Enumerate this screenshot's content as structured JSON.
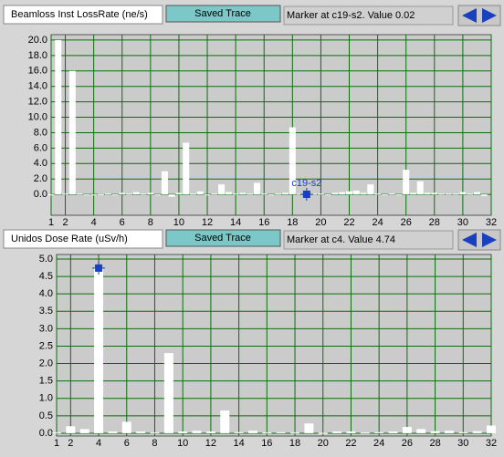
{
  "chart_data": [
    {
      "type": "bar",
      "title": "Beamloss Inst LossRate (ne/s)",
      "button": "Saved Trace",
      "marker_text": "Marker at c19-s2. Value 0.02",
      "marker": {
        "label": "c19-s2",
        "x": 19,
        "y": 0.02
      },
      "x": [
        1,
        1.5,
        2,
        2.5,
        3,
        3.5,
        4,
        4.5,
        5,
        5.5,
        6,
        6.5,
        7,
        7.5,
        8,
        8.5,
        9,
        9.5,
        10,
        10.5,
        11,
        11.5,
        12,
        12.5,
        13,
        13.5,
        14,
        14.5,
        15,
        15.5,
        16,
        16.5,
        17,
        17.5,
        18,
        18.5,
        19,
        19.5,
        20,
        20.5,
        21,
        21.5,
        22,
        22.5,
        23,
        23.5,
        24,
        24.5,
        25,
        25.5,
        26,
        26.5,
        27,
        27.5,
        28,
        28.5,
        29,
        29.5,
        30,
        30.5,
        31,
        31.5
      ],
      "values": [
        0,
        20,
        0.1,
        16,
        0.1,
        -0.1,
        0,
        0.05,
        0.1,
        0,
        0.2,
        0.1,
        0.3,
        0.1,
        0.2,
        -0.1,
        3.0,
        -0.3,
        0.2,
        6.7,
        0.1,
        0.4,
        0,
        0.1,
        1.3,
        0.3,
        0.1,
        0.2,
        0.1,
        1.5,
        0.1,
        0,
        0.1,
        0.2,
        8.7,
        0.1,
        0.02,
        0.1,
        0.1,
        0,
        0.2,
        0.3,
        0.4,
        0.5,
        0.2,
        1.3,
        0.1,
        0,
        0.1,
        0,
        3.2,
        0.2,
        1.7,
        0.2,
        0.2,
        0.1,
        0.1,
        0.1,
        0.3,
        0.1,
        0.3,
        -0.2
      ],
      "color": "#ffffff",
      "xlim": [
        1,
        32
      ],
      "xticks": [
        1,
        2,
        4,
        6,
        8,
        10,
        12,
        14,
        16,
        18,
        20,
        22,
        24,
        26,
        28,
        30,
        32
      ],
      "ylim": [
        -2.7,
        20.7
      ],
      "yticks": [
        {
          "value": 0,
          "label": "0.0"
        },
        {
          "value": 2,
          "label": "2.0"
        },
        {
          "value": 4,
          "label": "4.0"
        },
        {
          "value": 6,
          "label": "6.0"
        },
        {
          "value": 8,
          "label": "8.0"
        },
        {
          "value": 10,
          "label": "10.0"
        },
        {
          "value": 12,
          "label": "12.0"
        },
        {
          "value": 14,
          "label": "14.0"
        },
        {
          "value": 16,
          "label": "16.0"
        },
        {
          "value": 18,
          "label": "18.0"
        },
        {
          "value": 20,
          "label": "20.0"
        }
      ],
      "grid": true
    },
    {
      "type": "bar",
      "title": "Unidos Dose Rate (uSv/h)",
      "button": "Saved Trace",
      "marker_text": "Marker at c4. Value 4.74",
      "marker": {
        "x": 4,
        "y": 4.74
      },
      "x": [
        1,
        2,
        3,
        4,
        5,
        6,
        7,
        8,
        9,
        10,
        11,
        12,
        13,
        14,
        15,
        16,
        17,
        18,
        19,
        20,
        21,
        22,
        23,
        24,
        25,
        26,
        27,
        28,
        29,
        30,
        31,
        32
      ],
      "values": [
        0.02,
        0.2,
        0.12,
        4.74,
        0.05,
        0.33,
        0.05,
        0.02,
        2.3,
        0.05,
        0.07,
        0.05,
        0.65,
        0.03,
        0.07,
        0.02,
        0.03,
        0.02,
        0.28,
        0.01,
        0.05,
        0.05,
        0.02,
        0.03,
        0.05,
        0.18,
        0.12,
        0.06,
        0.07,
        0.03,
        0.06,
        0.22
      ],
      "color": "#ffffff",
      "xlim": [
        1,
        32
      ],
      "xticks": [
        1,
        2,
        4,
        6,
        8,
        10,
        12,
        14,
        16,
        18,
        20,
        22,
        24,
        26,
        28,
        30,
        32
      ],
      "ylim": [
        -0.08,
        5.13
      ],
      "yticks": [
        {
          "value": 0,
          "label": "0.0"
        },
        0.5,
        {
          "value": 1,
          "label": "1.0"
        },
        1.5,
        {
          "value": 2,
          "label": "2.0"
        },
        2.5,
        {
          "value": 3,
          "label": "3.0"
        },
        3.5,
        {
          "value": 4,
          "label": "4.0"
        },
        4.5,
        {
          "value": 5,
          "label": "5.0"
        }
      ],
      "grid": true
    }
  ]
}
